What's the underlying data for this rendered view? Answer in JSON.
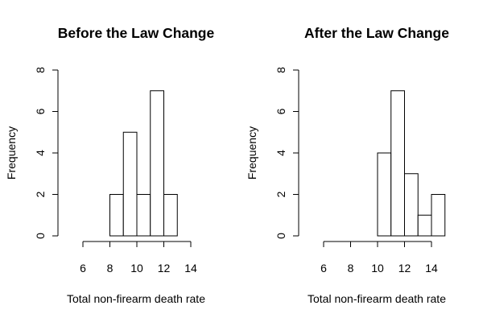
{
  "chart_data": [
    {
      "type": "bar",
      "subtype": "histogram",
      "title": "Before the Law Change",
      "xlabel": "Total non-firearm death rate",
      "ylabel": "Frequency",
      "bins": [
        [
          8,
          9
        ],
        [
          9,
          10
        ],
        [
          10,
          11
        ],
        [
          11,
          12
        ],
        [
          12,
          13
        ]
      ],
      "values": [
        2,
        5,
        2,
        7,
        2
      ],
      "xlim": [
        6,
        14
      ],
      "ylim": [
        0,
        8
      ],
      "xticks": [
        "6",
        "8",
        "10",
        "12",
        "14"
      ],
      "yticks": [
        "0",
        "2",
        "4",
        "6",
        "8"
      ],
      "grid": false,
      "legend": "none"
    },
    {
      "type": "bar",
      "subtype": "histogram",
      "title": "After the Law Change",
      "xlabel": "Total non-firearm death rate",
      "ylabel": "Frequency",
      "bins": [
        [
          10,
          11
        ],
        [
          11,
          12
        ],
        [
          12,
          13
        ],
        [
          13,
          14
        ],
        [
          14,
          15
        ]
      ],
      "values": [
        4,
        7,
        3,
        1,
        2
      ],
      "xlim": [
        6,
        14
      ],
      "ylim": [
        0,
        8
      ],
      "xticks": [
        "6",
        "8",
        "10",
        "12",
        "14"
      ],
      "yticks": [
        "0",
        "2",
        "4",
        "6",
        "8"
      ],
      "grid": false,
      "legend": "none"
    }
  ]
}
